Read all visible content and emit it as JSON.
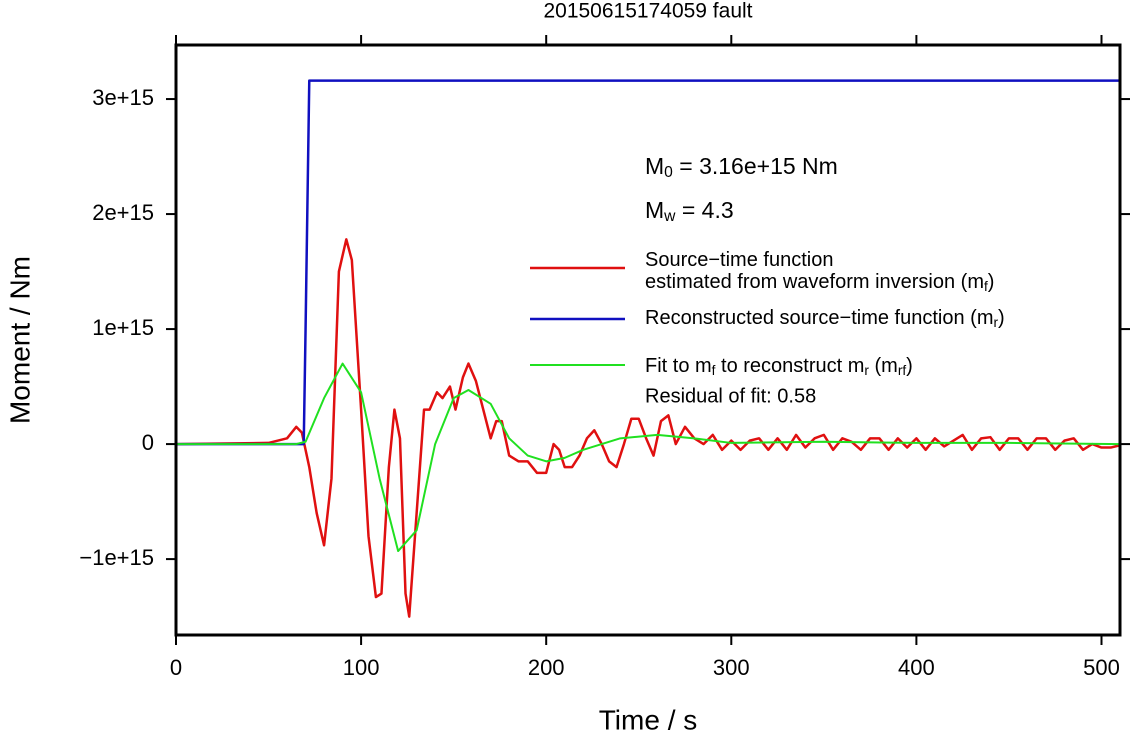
{
  "chart_data": {
    "type": "line",
    "title": "20150615174059 fault",
    "x_label": "Time / s",
    "y_label": "Moment / Nm",
    "xlim": [
      0,
      510
    ],
    "ylim": [
      -1660000000000000.0,
      3470000000000000.0
    ],
    "xticks": [
      0,
      100,
      200,
      300,
      400,
      500
    ],
    "yticks": [
      {
        "value": -1000000000000000.0,
        "label": "−1e+15"
      },
      {
        "value": 0,
        "label": "0"
      },
      {
        "value": 1000000000000000.0,
        "label": "1e+15"
      },
      {
        "value": 2000000000000000.0,
        "label": "2e+15"
      },
      {
        "value": 3000000000000000.0,
        "label": "3e+15"
      }
    ],
    "annotations": [
      [
        "M",
        "0",
        " = 3.16e+15 Nm"
      ],
      [
        "M",
        "w",
        " = 4.3"
      ]
    ],
    "note": "Residual of fit: 0.58",
    "series": [
      {
        "name": [
          [
            "Source−time function"
          ],
          [
            "estimated from waveform inversion (m",
            "f",
            ")"
          ]
        ],
        "color": "#e01010",
        "x": [
          0,
          50,
          60,
          65,
          68,
          72,
          76,
          80,
          84,
          88,
          92,
          95,
          100,
          104,
          108,
          111,
          115,
          118,
          121,
          124,
          126,
          130,
          134,
          137,
          141,
          144,
          148,
          151,
          155,
          158,
          162,
          166,
          170,
          173,
          176,
          180,
          185,
          190,
          195,
          200,
          204,
          207,
          210,
          214,
          218,
          222,
          226,
          230,
          234,
          238,
          242,
          246,
          250,
          254,
          258,
          262,
          266,
          270,
          275,
          280,
          285,
          290,
          295,
          300,
          305,
          310,
          315,
          320,
          325,
          330,
          335,
          340,
          345,
          350,
          355,
          360,
          365,
          370,
          375,
          380,
          385,
          390,
          395,
          400,
          405,
          410,
          415,
          420,
          425,
          430,
          435,
          440,
          445,
          450,
          455,
          460,
          465,
          470,
          475,
          480,
          485,
          490,
          495,
          500,
          505,
          510
        ],
        "values": [
          0,
          10000000000000.0,
          50000000000000.0,
          150000000000000.0,
          100000000000000.0,
          -200000000000000.0,
          -600000000000000.0,
          -880000000000000.0,
          -300000000000000.0,
          1500000000000000.0,
          1780000000000000.0,
          1600000000000000.0,
          300000000000000.0,
          -800000000000000.0,
          -1330000000000000.0,
          -1300000000000000.0,
          -200000000000000.0,
          300000000000000.0,
          50000000000000.0,
          -1300000000000000.0,
          -1500000000000000.0,
          -600000000000000.0,
          300000000000000.0,
          300000000000000.0,
          450000000000000.0,
          400000000000000.0,
          500000000000000.0,
          300000000000000.0,
          580000000000000.0,
          700000000000000.0,
          550000000000000.0,
          300000000000000.0,
          50000000000000.0,
          200000000000000.0,
          200000000000000.0,
          -100000000000000.0,
          -150000000000000.0,
          -150000000000000.0,
          -250000000000000.0,
          -250000000000000.0,
          0,
          -50000000000000.0,
          -200000000000000.0,
          -200000000000000.0,
          -100000000000000.0,
          50000000000000.0,
          120000000000000.0,
          0,
          -150000000000000.0,
          -200000000000000.0,
          0,
          220000000000000.0,
          220000000000000.0,
          50000000000000.0,
          -100000000000000.0,
          200000000000000.0,
          250000000000000.0,
          0,
          150000000000000.0,
          50000000000000.0,
          0,
          80000000000000.0,
          -50000000000000.0,
          30000000000000.0,
          -50000000000000.0,
          30000000000000.0,
          50000000000000.0,
          -50000000000000.0,
          50000000000000.0,
          -50000000000000.0,
          80000000000000.0,
          -30000000000000.0,
          50000000000000.0,
          80000000000000.0,
          -50000000000000.0,
          50000000000000.0,
          20000000000000.0,
          -50000000000000.0,
          50000000000000.0,
          50000000000000.0,
          -50000000000000.0,
          50000000000000.0,
          -30000000000000.0,
          50000000000000.0,
          -50000000000000.0,
          50000000000000.0,
          -20000000000000.0,
          30000000000000.0,
          80000000000000.0,
          -50000000000000.0,
          50000000000000.0,
          60000000000000.0,
          -50000000000000.0,
          50000000000000.0,
          50000000000000.0,
          -50000000000000.0,
          50000000000000.0,
          50000000000000.0,
          -50000000000000.0,
          30000000000000.0,
          50000000000000.0,
          -50000000000000.0,
          0,
          -30000000000000.0,
          -30000000000000.0,
          -10000000000000.0
        ]
      },
      {
        "name": [
          [
            "Reconstructed source−time function (m",
            "r",
            ")"
          ]
        ],
        "color": "#1010c0",
        "x": [
          0,
          69,
          70,
          72,
          510
        ],
        "values": [
          0,
          0,
          1000000000000000.0,
          3160000000000000.0,
          3160000000000000.0
        ]
      },
      {
        "name": [
          [
            "Fit to m",
            "f",
            " to reconstruct m",
            "r",
            " (m",
            "rf",
            ")"
          ]
        ],
        "color": "#20e020",
        "x": [
          0,
          65,
          70,
          80,
          90,
          100,
          110,
          120,
          130,
          140,
          150,
          158,
          170,
          180,
          190,
          200,
          210,
          220,
          240,
          260,
          280,
          300,
          350,
          400,
          450,
          510
        ],
        "values": [
          0,
          0,
          20000000000000.0,
          400000000000000.0,
          700000000000000.0,
          450000000000000.0,
          -300000000000000.0,
          -930000000000000.0,
          -750000000000000.0,
          0,
          400000000000000.0,
          470000000000000.0,
          350000000000000.0,
          50000000000000.0,
          -100000000000000.0,
          -150000000000000.0,
          -120000000000000.0,
          -50000000000000.0,
          50000000000000.0,
          80000000000000.0,
          50000000000000.0,
          10000000000000.0,
          20000000000000.0,
          10000000000000.0,
          10000000000000.0,
          0
        ]
      }
    ]
  }
}
